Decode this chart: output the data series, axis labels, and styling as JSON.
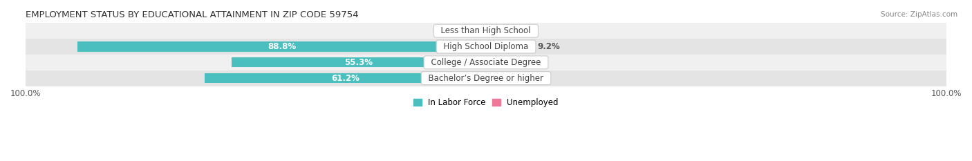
{
  "title": "EMPLOYMENT STATUS BY EDUCATIONAL ATTAINMENT IN ZIP CODE 59754",
  "source": "Source: ZipAtlas.com",
  "categories": [
    "Less than High School",
    "High School Diploma",
    "College / Associate Degree",
    "Bachelor’s Degree or higher"
  ],
  "labor_force": [
    0.0,
    88.8,
    55.3,
    61.2
  ],
  "unemployed": [
    0.0,
    9.2,
    3.1,
    0.0
  ],
  "labor_force_color": "#4bbfbf",
  "unemployed_color": "#f07898",
  "row_bg_colors": [
    "#f0f0f0",
    "#e4e4e4",
    "#f0f0f0",
    "#e4e4e4"
  ],
  "axis_max": 100.0,
  "label_fontsize": 8.5,
  "title_fontsize": 9.5,
  "source_fontsize": 7.5,
  "legend_fontsize": 8.5,
  "bar_height": 0.62,
  "white_text": "#ffffff",
  "dark_text": "#555555",
  "category_fontsize": 8.5,
  "category_text_color": "#444444"
}
